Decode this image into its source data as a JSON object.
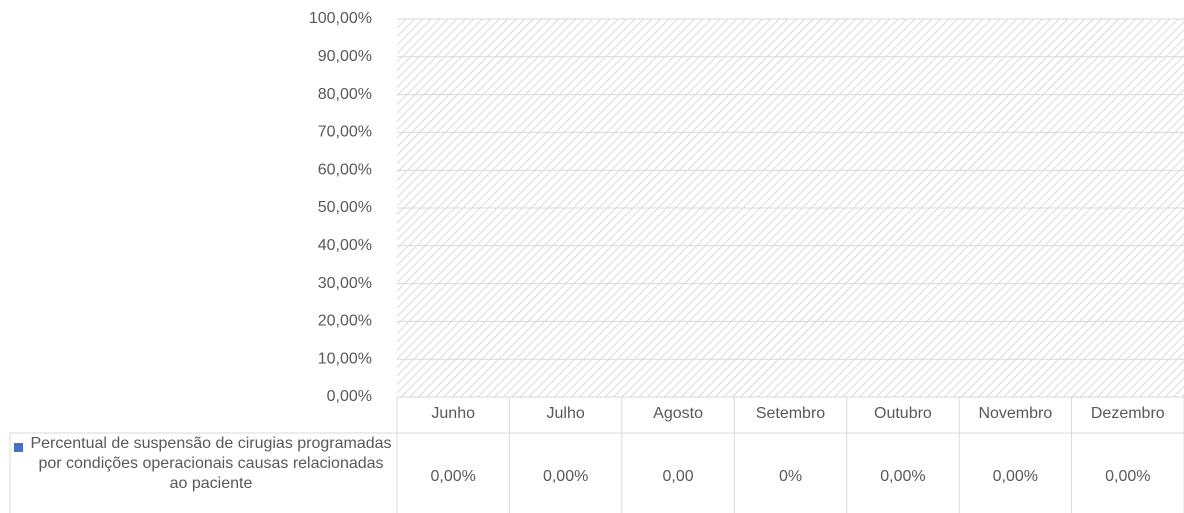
{
  "chart_data": {
    "type": "bar",
    "categories": [
      "Junho",
      "Julho",
      "Agosto",
      "Setembro",
      "Outubro",
      "Novembro",
      "Dezembro"
    ],
    "series": [
      {
        "name": "Percentual de suspensão de cirugias programadas por condições operacionais causas relacionadas ao paciente",
        "color": "#4472c4",
        "values": [
          0,
          0,
          0,
          0,
          0,
          0,
          0
        ],
        "value_labels": [
          "0,00%",
          "0,00%",
          "0,00",
          "0%",
          "0,00%",
          "0,00%",
          "0,00%"
        ]
      }
    ],
    "ylim": [
      0,
      100
    ],
    "yticks": [
      {
        "value": 0,
        "label": "0,00%"
      },
      {
        "value": 10,
        "label": "10,00%"
      },
      {
        "value": 20,
        "label": "20,00%"
      },
      {
        "value": 30,
        "label": "30,00%"
      },
      {
        "value": 40,
        "label": "40,00%"
      },
      {
        "value": 50,
        "label": "50,00%"
      },
      {
        "value": 60,
        "label": "60,00%"
      },
      {
        "value": 70,
        "label": "70,00%"
      },
      {
        "value": 80,
        "label": "80,00%"
      },
      {
        "value": 90,
        "label": "90,00%"
      },
      {
        "value": 100,
        "label": "100,00%"
      }
    ],
    "grid": true
  }
}
